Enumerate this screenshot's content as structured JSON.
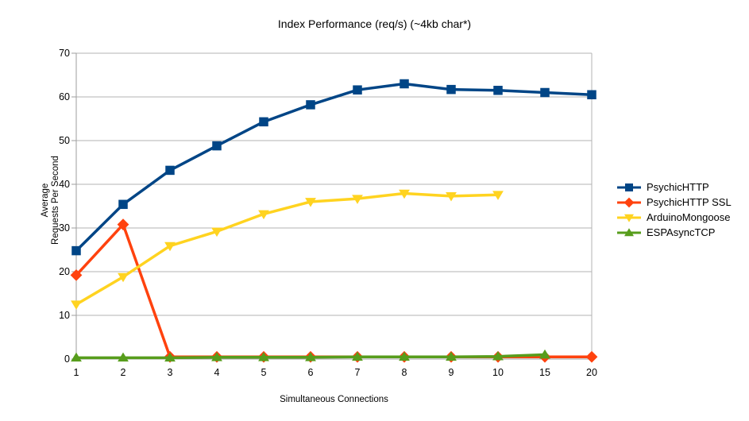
{
  "chart_data": {
    "type": "line",
    "title": "Index Performance (req/s) (~4kb char*)",
    "xlabel": "Simultaneous Connections",
    "ylabel_lines": [
      "Average",
      "Requests Per Second"
    ],
    "categories": [
      "1",
      "2",
      "3",
      "4",
      "5",
      "6",
      "7",
      "8",
      "9",
      "10",
      "15",
      "20"
    ],
    "ylim": [
      0,
      70
    ],
    "yticks": [
      0,
      10,
      20,
      30,
      40,
      50,
      60,
      70
    ],
    "grid": "horizontal",
    "legend_position": "right",
    "series": [
      {
        "name": "PsychicHTTP",
        "color": "#004586",
        "marker": "square",
        "values": [
          24.8,
          35.4,
          43.2,
          48.8,
          54.3,
          58.2,
          61.6,
          63.0,
          61.7,
          61.5,
          61.0,
          60.5
        ]
      },
      {
        "name": "PsychicHTTP SSL",
        "color": "#FF420E",
        "marker": "diamond",
        "values": [
          19.2,
          30.8,
          0.5,
          0.5,
          0.5,
          0.5,
          0.5,
          0.5,
          0.5,
          0.5,
          0.5,
          0.5
        ]
      },
      {
        "name": "ArduinoMongoose",
        "color": "#FFD320",
        "marker": "triangle-down",
        "values": [
          12.5,
          18.8,
          25.9,
          29.2,
          33.2,
          36.0,
          36.7,
          37.9,
          37.3,
          37.6,
          null,
          null
        ]
      },
      {
        "name": "ESPAsyncTCP",
        "color": "#579D1C",
        "marker": "triangle-up",
        "values": [
          0.3,
          0.3,
          0.3,
          0.4,
          0.4,
          0.4,
          0.5,
          0.5,
          0.5,
          0.6,
          1.0,
          null
        ]
      }
    ]
  },
  "colors": {
    "background": "#ffffff",
    "gridline": "#b3b3b3",
    "axis": "#9e9e9e",
    "text": "#000000"
  }
}
